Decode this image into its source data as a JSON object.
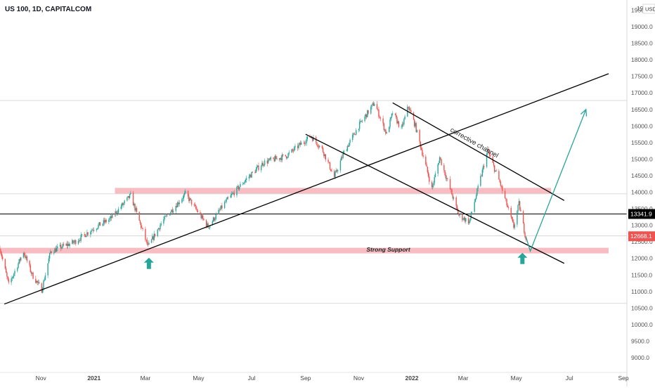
{
  "header": {
    "symbol_title": "US 100, 1D, CAPITALCOM",
    "currency": "USD"
  },
  "colors": {
    "up": "#26a69a",
    "down": "#ef5350",
    "zone": "#f7b6bd",
    "trendline": "#000000",
    "projection": "#26a69a",
    "price_tag_black": "#000000",
    "price_tag_red": "#ef5350"
  },
  "chart_data": {
    "type": "candlestick",
    "title": "US 100, 1D, CAPITALCOM",
    "x_tick_labels": [
      "Nov",
      "2021",
      "Mar",
      "May",
      "Jul",
      "Sep",
      "Nov",
      "2022",
      "Mar",
      "May",
      "Jul",
      "Sep"
    ],
    "y_tick_labels": [
      "9000.0",
      "9500.0",
      "10000.0",
      "10500.0",
      "11000.0",
      "11500.0",
      "12000.0",
      "12500.0",
      "13000.0",
      "13500.0",
      "14000.0",
      "14500.0",
      "15000.0",
      "15500.0",
      "16000.0",
      "16500.0",
      "17000.0",
      "17500.0",
      "18000.0",
      "18500.0",
      "19000.0",
      "19500.0"
    ],
    "y_top_partial_label": "19",
    "ylim": [
      8800,
      19800
    ],
    "x_range": [
      "2020-09-15",
      "2022-09-05"
    ],
    "last_price_label": "12668.1",
    "horizontal_line_label": "13341.9",
    "horizontal_line_value": 13341.9,
    "support_zone": {
      "label": "Strong Support",
      "y_low": 12150,
      "y_high": 12320,
      "from": "2020-09-15",
      "to": "2022-08-15"
    },
    "resistance_zone": {
      "y_low": 13960,
      "y_high": 14130,
      "from": "2021-01-25",
      "to": "2022-06-10"
    },
    "faint_horizontal_levels": [
      16770,
      13950,
      12680,
      10640
    ],
    "trendlines": [
      {
        "name": "rising-support",
        "from": {
          "date": "2020-09-20",
          "price": 10620
        },
        "to": {
          "date": "2022-08-15",
          "price": 17580
        }
      },
      {
        "name": "channel-lower",
        "from": {
          "date": "2021-09-01",
          "price": 15750
        },
        "to": {
          "date": "2022-06-25",
          "price": 11850
        }
      },
      {
        "name": "channel-upper",
        "from": {
          "date": "2021-12-10",
          "price": 16700
        },
        "to": {
          "date": "2022-06-25",
          "price": 13750
        }
      }
    ],
    "channel_label": "corrective channel",
    "projection": {
      "points": [
        {
          "date": "2022-05-12",
          "price": 12660
        },
        {
          "date": "2022-05-17",
          "price": 12220
        },
        {
          "date": "2022-07-20",
          "price": 16500
        }
      ]
    },
    "arrow_markers": [
      {
        "date": "2021-03-05",
        "price": 11850
      },
      {
        "date": "2022-05-08",
        "price": 12000
      }
    ],
    "price_path": [
      [
        "2020-09-15",
        12300
      ],
      [
        "2020-09-25",
        11200
      ],
      [
        "2020-10-12",
        12200
      ],
      [
        "2020-10-22",
        11500
      ],
      [
        "2020-11-02",
        11050
      ],
      [
        "2020-11-12",
        12200
      ],
      [
        "2020-11-25",
        12350
      ],
      [
        "2020-12-10",
        12500
      ],
      [
        "2020-12-31",
        12900
      ],
      [
        "2021-01-20",
        13200
      ],
      [
        "2021-02-12",
        13900
      ],
      [
        "2021-03-04",
        12350
      ],
      [
        "2021-03-20",
        13100
      ],
      [
        "2021-04-16",
        13950
      ],
      [
        "2021-05-12",
        12950
      ],
      [
        "2021-06-01",
        13700
      ],
      [
        "2021-06-25",
        14400
      ],
      [
        "2021-07-15",
        14900
      ],
      [
        "2021-08-10",
        15100
      ],
      [
        "2021-09-07",
        15700
      ],
      [
        "2021-09-20",
        15300
      ],
      [
        "2021-10-04",
        14450
      ],
      [
        "2021-10-15",
        15200
      ],
      [
        "2021-11-01",
        16000
      ],
      [
        "2021-11-19",
        16700
      ],
      [
        "2021-12-03",
        15750
      ],
      [
        "2021-12-10",
        16400
      ],
      [
        "2021-12-20",
        15900
      ],
      [
        "2021-12-28",
        16600
      ],
      [
        "2022-01-05",
        16000
      ],
      [
        "2022-01-24",
        14100
      ],
      [
        "2022-02-02",
        15050
      ],
      [
        "2022-02-24",
        13300
      ],
      [
        "2022-03-08",
        13100
      ],
      [
        "2022-03-29",
        15250
      ],
      [
        "2022-04-12",
        14300
      ],
      [
        "2022-04-28",
        12950
      ],
      [
        "2022-05-04",
        13650
      ],
      [
        "2022-05-12",
        12600
      ]
    ]
  }
}
